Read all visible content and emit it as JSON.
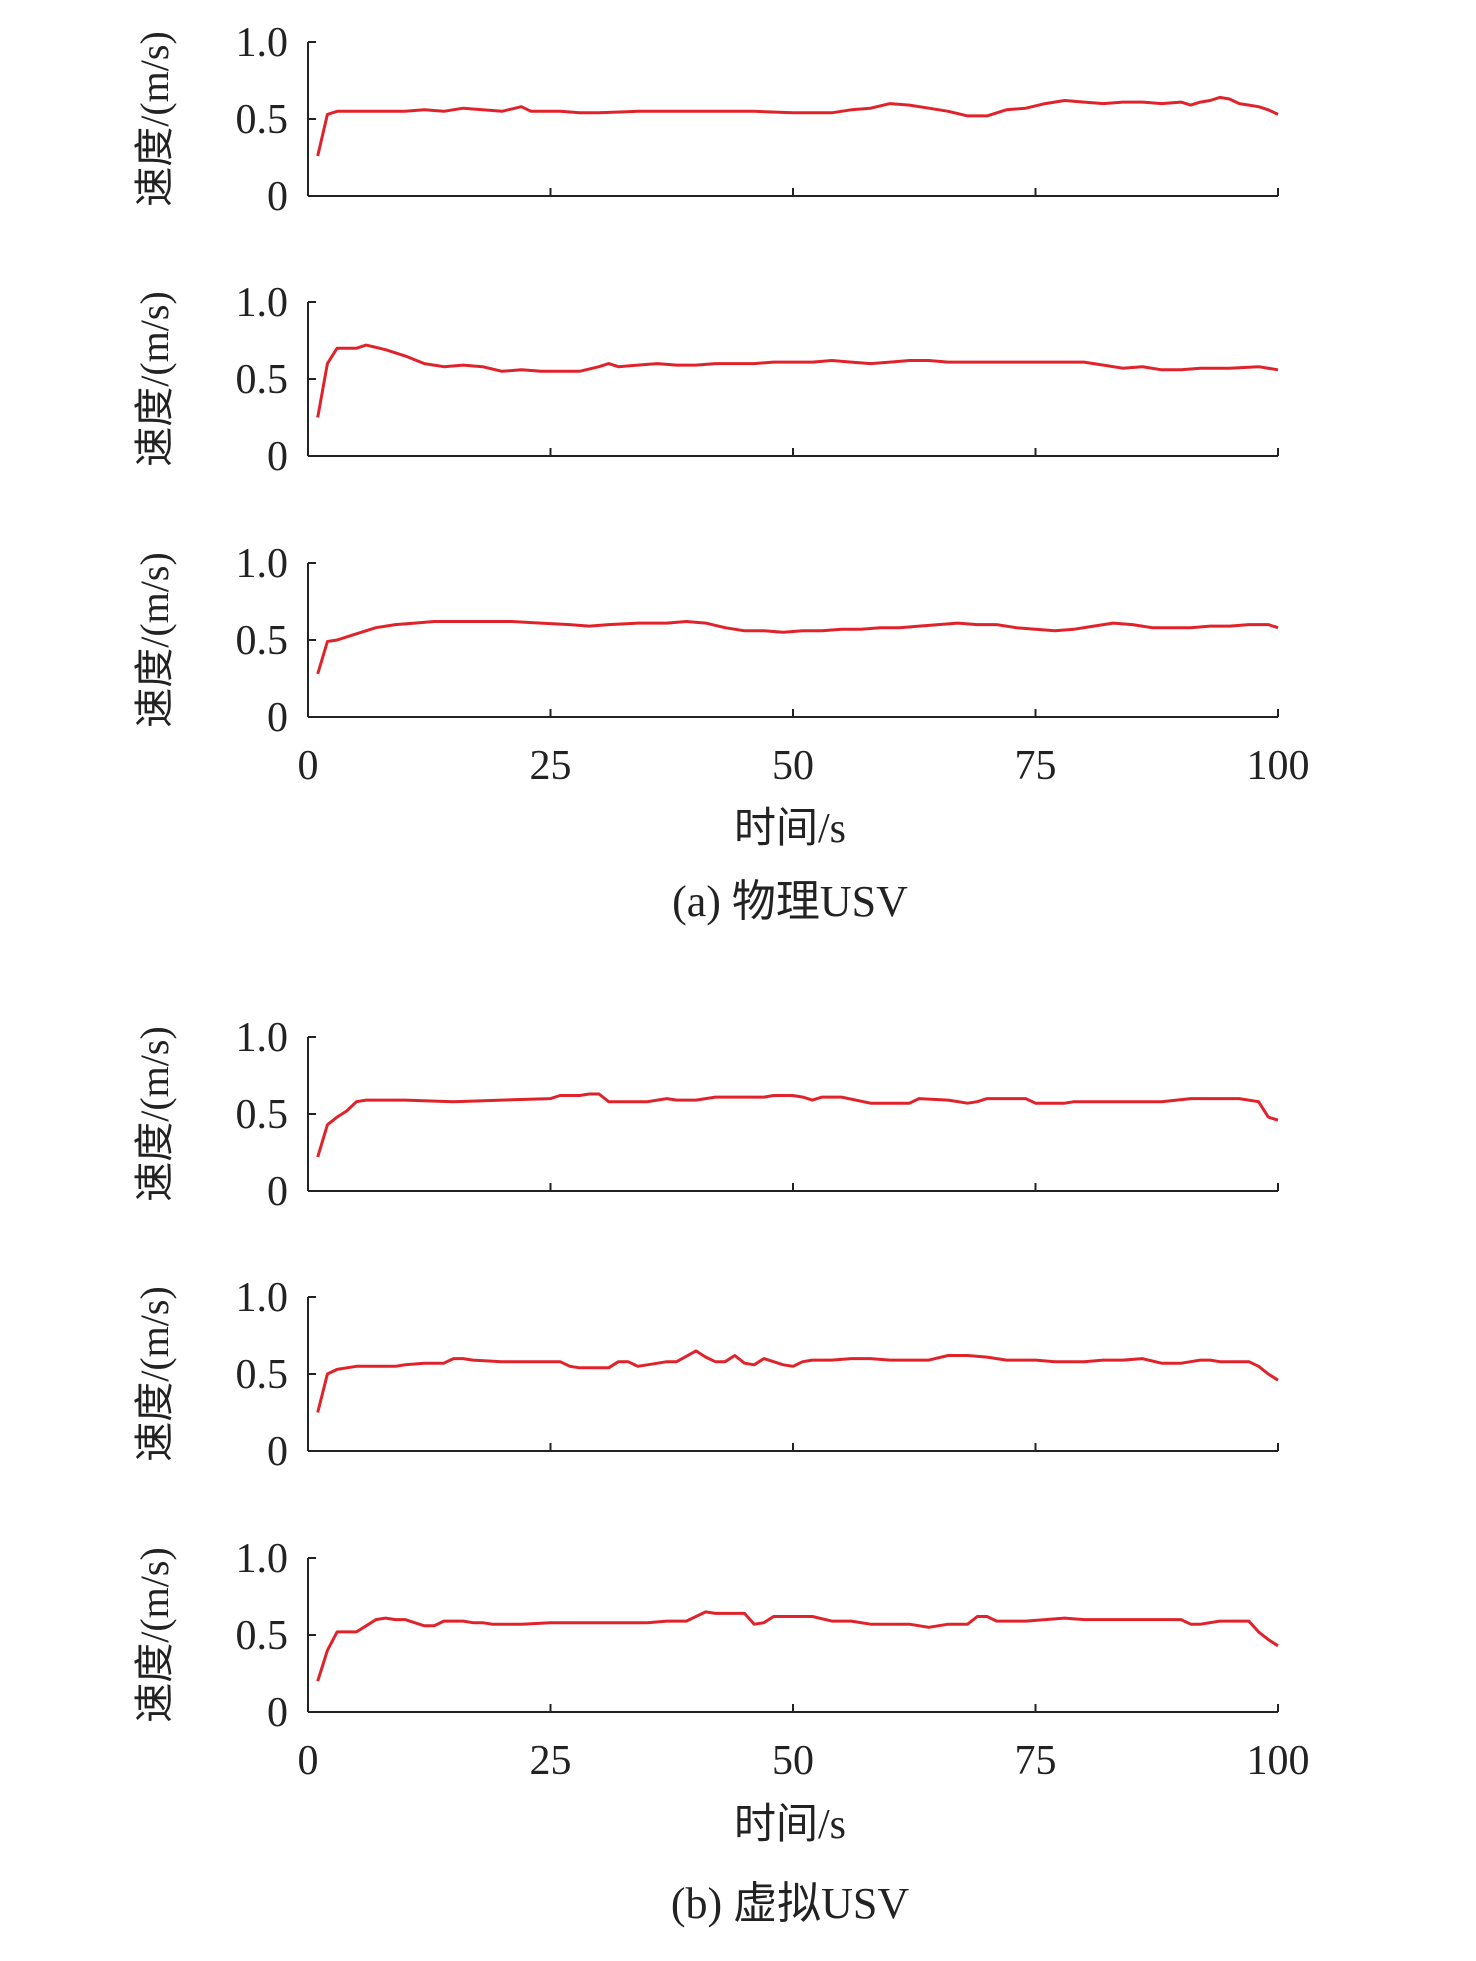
{
  "figure": {
    "panels": [
      {
        "caption": "(a) 物理USV",
        "xlabel": "时间/s"
      },
      {
        "caption": "(b) 虚拟USV",
        "xlabel": "时间/s"
      }
    ],
    "line_color": "#e0232b",
    "axis_color": "#222222"
  },
  "chart_data": [
    {
      "type": "line",
      "panel": "a",
      "ylabel": "速度/(m/s)",
      "xlim": [
        0,
        100
      ],
      "ylim": [
        0,
        1.0
      ],
      "xticks": [
        "0",
        "25",
        "50",
        "75",
        "100"
      ],
      "yticks": [
        "0",
        "0.5",
        "1.0"
      ],
      "show_xticklabels": false,
      "x": [
        1,
        2,
        3,
        5,
        8,
        10,
        12,
        14,
        16,
        18,
        20,
        22,
        23,
        26,
        28,
        30,
        34,
        40,
        46,
        50,
        54,
        56,
        58,
        60,
        62,
        64,
        66,
        68,
        70,
        72,
        74,
        76,
        78,
        80,
        82,
        84,
        86,
        88,
        90,
        91,
        92,
        93,
        94,
        95,
        96,
        97,
        98,
        99,
        100
      ],
      "values": [
        0.26,
        0.53,
        0.55,
        0.55,
        0.55,
        0.55,
        0.56,
        0.55,
        0.57,
        0.56,
        0.55,
        0.58,
        0.55,
        0.55,
        0.54,
        0.54,
        0.55,
        0.55,
        0.55,
        0.54,
        0.54,
        0.56,
        0.57,
        0.6,
        0.59,
        0.57,
        0.55,
        0.52,
        0.52,
        0.56,
        0.57,
        0.6,
        0.62,
        0.61,
        0.6,
        0.61,
        0.61,
        0.6,
        0.61,
        0.59,
        0.61,
        0.62,
        0.64,
        0.63,
        0.6,
        0.59,
        0.58,
        0.56,
        0.53
      ]
    },
    {
      "type": "line",
      "panel": "a",
      "ylabel": "速度/(m/s)",
      "xlim": [
        0,
        100
      ],
      "ylim": [
        0,
        1.0
      ],
      "xticks": [
        "0",
        "25",
        "50",
        "75",
        "100"
      ],
      "yticks": [
        "0",
        "0.5",
        "1.0"
      ],
      "show_xticklabels": false,
      "x": [
        1,
        2,
        3,
        5,
        6,
        8,
        10,
        12,
        14,
        16,
        18,
        20,
        22,
        24,
        26,
        28,
        30,
        31,
        32,
        34,
        36,
        38,
        40,
        42,
        44,
        46,
        48,
        50,
        52,
        54,
        56,
        58,
        60,
        62,
        64,
        66,
        68,
        70,
        74,
        78,
        80,
        82,
        84,
        86,
        88,
        90,
        92,
        95,
        98,
        100
      ],
      "values": [
        0.25,
        0.6,
        0.7,
        0.7,
        0.72,
        0.69,
        0.65,
        0.6,
        0.58,
        0.59,
        0.58,
        0.55,
        0.56,
        0.55,
        0.55,
        0.55,
        0.58,
        0.6,
        0.58,
        0.59,
        0.6,
        0.59,
        0.59,
        0.6,
        0.6,
        0.6,
        0.61,
        0.61,
        0.61,
        0.62,
        0.61,
        0.6,
        0.61,
        0.62,
        0.62,
        0.61,
        0.61,
        0.61,
        0.61,
        0.61,
        0.61,
        0.59,
        0.57,
        0.58,
        0.56,
        0.56,
        0.57,
        0.57,
        0.58,
        0.56
      ]
    },
    {
      "type": "line",
      "panel": "a",
      "ylabel": "速度/(m/s)",
      "xlim": [
        0,
        100
      ],
      "ylim": [
        0,
        1.0
      ],
      "xticks": [
        "0",
        "25",
        "50",
        "75",
        "100"
      ],
      "yticks": [
        "0",
        "0.5",
        "1.0"
      ],
      "show_xticklabels": true,
      "x": [
        1,
        2,
        3,
        5,
        7,
        9,
        11,
        13,
        15,
        17,
        19,
        21,
        24,
        27,
        29,
        31,
        34,
        37,
        39,
        41,
        43,
        45,
        47,
        49,
        51,
        53,
        55,
        57,
        59,
        61,
        63,
        65,
        67,
        69,
        71,
        73,
        75,
        77,
        79,
        81,
        83,
        85,
        87,
        89,
        91,
        93,
        95,
        97,
        99,
        100
      ],
      "values": [
        0.28,
        0.49,
        0.5,
        0.54,
        0.58,
        0.6,
        0.61,
        0.62,
        0.62,
        0.62,
        0.62,
        0.62,
        0.61,
        0.6,
        0.59,
        0.6,
        0.61,
        0.61,
        0.62,
        0.61,
        0.58,
        0.56,
        0.56,
        0.55,
        0.56,
        0.56,
        0.57,
        0.57,
        0.58,
        0.58,
        0.59,
        0.6,
        0.61,
        0.6,
        0.6,
        0.58,
        0.57,
        0.56,
        0.57,
        0.59,
        0.61,
        0.6,
        0.58,
        0.58,
        0.58,
        0.59,
        0.59,
        0.6,
        0.6,
        0.58
      ]
    },
    {
      "type": "line",
      "panel": "b",
      "ylabel": "速度/(m/s)",
      "xlim": [
        0,
        100
      ],
      "ylim": [
        0,
        1.0
      ],
      "xticks": [
        "0",
        "25",
        "50",
        "75",
        "100"
      ],
      "yticks": [
        "0",
        "0.5",
        "1.0"
      ],
      "show_xticklabels": false,
      "x": [
        1,
        2,
        3,
        4,
        5,
        6,
        10,
        15,
        20,
        25,
        26,
        28,
        29,
        30,
        31,
        33,
        35,
        37,
        38,
        40,
        42,
        45,
        47,
        48,
        49,
        50,
        51,
        52,
        53,
        55,
        58,
        62,
        63,
        66,
        68,
        69,
        70,
        72,
        74,
        75,
        78,
        79,
        82,
        85,
        88,
        91,
        94,
        96,
        98,
        99,
        100
      ],
      "values": [
        0.22,
        0.43,
        0.48,
        0.52,
        0.58,
        0.59,
        0.59,
        0.58,
        0.59,
        0.6,
        0.62,
        0.62,
        0.63,
        0.63,
        0.58,
        0.58,
        0.58,
        0.6,
        0.59,
        0.59,
        0.61,
        0.61,
        0.61,
        0.62,
        0.62,
        0.62,
        0.61,
        0.59,
        0.61,
        0.61,
        0.57,
        0.57,
        0.6,
        0.59,
        0.57,
        0.58,
        0.6,
        0.6,
        0.6,
        0.57,
        0.57,
        0.58,
        0.58,
        0.58,
        0.58,
        0.6,
        0.6,
        0.6,
        0.58,
        0.48,
        0.46
      ]
    },
    {
      "type": "line",
      "panel": "b",
      "ylabel": "速度/(m/s)",
      "xlim": [
        0,
        100
      ],
      "ylim": [
        0,
        1.0
      ],
      "xticks": [
        "0",
        "25",
        "50",
        "75",
        "100"
      ],
      "yticks": [
        "0",
        "0.5",
        "1.0"
      ],
      "show_xticklabels": false,
      "x": [
        1,
        2,
        3,
        5,
        7,
        9,
        10,
        12,
        14,
        15,
        16,
        17,
        20,
        23,
        26,
        27,
        28,
        30,
        31,
        32,
        33,
        34,
        35,
        37,
        38,
        40,
        41,
        42,
        43,
        44,
        45,
        46,
        47,
        48,
        49,
        50,
        51,
        52,
        54,
        56,
        58,
        60,
        62,
        64,
        66,
        68,
        70,
        72,
        75,
        77,
        80,
        82,
        84,
        86,
        88,
        90,
        91,
        92,
        93,
        94,
        95,
        96,
        97,
        98,
        99,
        100
      ],
      "values": [
        0.25,
        0.5,
        0.53,
        0.55,
        0.55,
        0.55,
        0.56,
        0.57,
        0.57,
        0.6,
        0.6,
        0.59,
        0.58,
        0.58,
        0.58,
        0.55,
        0.54,
        0.54,
        0.54,
        0.58,
        0.58,
        0.55,
        0.56,
        0.58,
        0.58,
        0.65,
        0.61,
        0.58,
        0.58,
        0.62,
        0.57,
        0.56,
        0.6,
        0.58,
        0.56,
        0.55,
        0.58,
        0.59,
        0.59,
        0.6,
        0.6,
        0.59,
        0.59,
        0.59,
        0.62,
        0.62,
        0.61,
        0.59,
        0.59,
        0.58,
        0.58,
        0.59,
        0.59,
        0.6,
        0.57,
        0.57,
        0.58,
        0.59,
        0.59,
        0.58,
        0.58,
        0.58,
        0.58,
        0.55,
        0.5,
        0.46
      ]
    },
    {
      "type": "line",
      "panel": "b",
      "ylabel": "速度/(m/s)",
      "xlim": [
        0,
        100
      ],
      "ylim": [
        0,
        1.0
      ],
      "xticks": [
        "0",
        "25",
        "50",
        "75",
        "100"
      ],
      "yticks": [
        "0",
        "0.5",
        "1.0"
      ],
      "show_xticklabels": true,
      "x": [
        1,
        2,
        3,
        4,
        5,
        6,
        7,
        8,
        9,
        10,
        11,
        12,
        13,
        14,
        15,
        16,
        17,
        18,
        19,
        20,
        22,
        25,
        28,
        30,
        32,
        35,
        37,
        39,
        41,
        42,
        43,
        44,
        45,
        46,
        47,
        48,
        50,
        52,
        54,
        56,
        58,
        60,
        62,
        64,
        66,
        68,
        69,
        70,
        71,
        72,
        74,
        76,
        78,
        80,
        82,
        84,
        86,
        88,
        90,
        91,
        92,
        94,
        95,
        96,
        97,
        98,
        99,
        100
      ],
      "values": [
        0.2,
        0.4,
        0.52,
        0.52,
        0.52,
        0.56,
        0.6,
        0.61,
        0.6,
        0.6,
        0.58,
        0.56,
        0.56,
        0.59,
        0.59,
        0.59,
        0.58,
        0.58,
        0.57,
        0.57,
        0.57,
        0.58,
        0.58,
        0.58,
        0.58,
        0.58,
        0.59,
        0.59,
        0.65,
        0.64,
        0.64,
        0.64,
        0.64,
        0.57,
        0.58,
        0.62,
        0.62,
        0.62,
        0.59,
        0.59,
        0.57,
        0.57,
        0.57,
        0.55,
        0.57,
        0.57,
        0.62,
        0.62,
        0.59,
        0.59,
        0.59,
        0.6,
        0.61,
        0.6,
        0.6,
        0.6,
        0.6,
        0.6,
        0.6,
        0.57,
        0.57,
        0.59,
        0.59,
        0.59,
        0.59,
        0.52,
        0.47,
        0.43
      ]
    }
  ]
}
